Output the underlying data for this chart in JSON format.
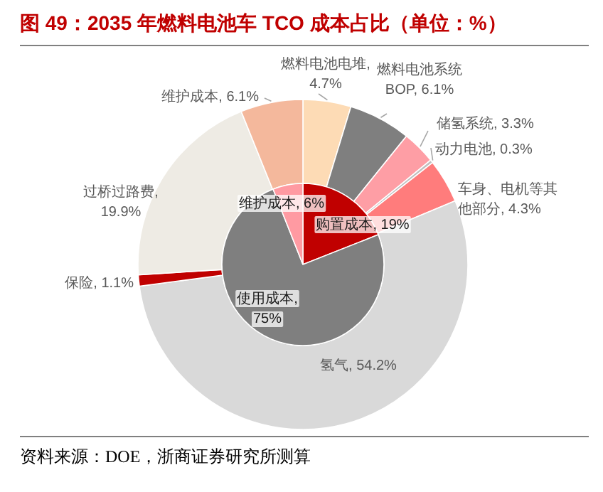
{
  "chart_data": [
    {
      "type": "pie",
      "title": "图 49：2035 年燃料电池车 TCO 成本占比（单位：%）",
      "annotations": [
        "资料来源：DOE，浙商证券研究所测算"
      ],
      "categories": [
        "购置成本",
        "使用成本",
        "维护成本"
      ],
      "values": [
        19,
        75,
        6
      ],
      "colors": [
        "#c00000",
        "#7f7f7f",
        "#ff9aa2"
      ],
      "value_labels": [
        ", 19%",
        ", 75%",
        ", 6%"
      ]
    },
    {
      "type": "donut",
      "categories": [
        "燃料电池电堆",
        "燃料电池系统BOP",
        "储氢系统",
        "动力电池",
        "车身、电机等其他部分",
        "氢气",
        "保险",
        "过桥过路费",
        "维护成本"
      ],
      "values": [
        4.7,
        6.1,
        3.3,
        0.3,
        4.3,
        54.2,
        1.1,
        19.9,
        6.1
      ],
      "colors": [
        "#fddbb5",
        "#7f7f7f",
        "#fe9ea5",
        "#bfbfbf",
        "#ff7c7c",
        "#d9d9d9",
        "#c00000",
        "#eeebe4",
        "#f4b89c"
      ],
      "value_labels": [
        ", 4.7%",
        ", 6.1%",
        ", 3.3%",
        ", 0.3%",
        ", 4.3%",
        ", 54.2%",
        ", 1.1%",
        ", 19.9%",
        ", 6.1%"
      ]
    }
  ]
}
